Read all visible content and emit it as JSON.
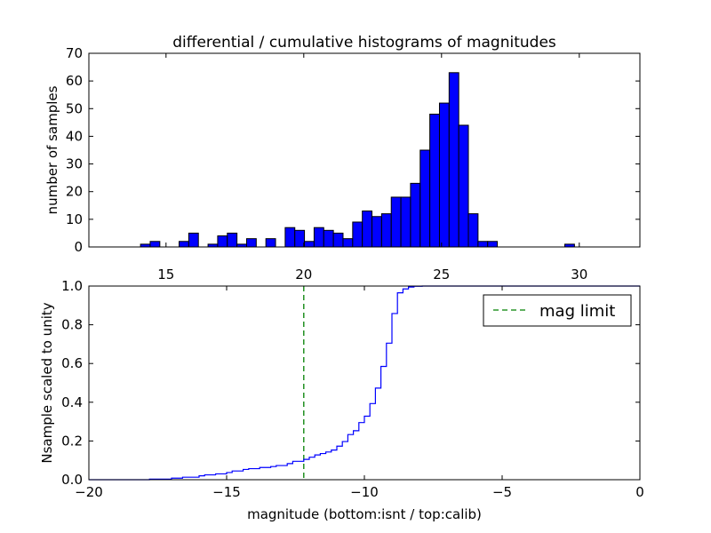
{
  "figure": {
    "title": "differential / cumulative histograms of magnitudes"
  },
  "chart_data": [
    {
      "type": "bar",
      "title": "differential / cumulative histograms of magnitudes",
      "xlabel": "",
      "ylabel": "number of samples",
      "xlim": [
        12.2,
        32.2
      ],
      "ylim": [
        0,
        70
      ],
      "x_ticks": [
        15,
        20,
        25,
        30
      ],
      "x_tick_labels": [
        "15",
        "20",
        "25",
        "30"
      ],
      "y_ticks": [
        0,
        10,
        20,
        30,
        40,
        50,
        60,
        70
      ],
      "y_tick_labels": [
        "0",
        "10",
        "20",
        "30",
        "40",
        "50",
        "60",
        "70"
      ],
      "bin_width": 0.35,
      "bars": [
        {
          "x": 14.25,
          "value": 1
        },
        {
          "x": 14.6,
          "value": 2
        },
        {
          "x": 15.65,
          "value": 2
        },
        {
          "x": 16.0,
          "value": 5
        },
        {
          "x": 16.7,
          "value": 1
        },
        {
          "x": 17.05,
          "value": 4
        },
        {
          "x": 17.4,
          "value": 5
        },
        {
          "x": 17.75,
          "value": 1
        },
        {
          "x": 18.1,
          "value": 3
        },
        {
          "x": 18.8,
          "value": 3
        },
        {
          "x": 19.5,
          "value": 7
        },
        {
          "x": 19.85,
          "value": 6
        },
        {
          "x": 20.2,
          "value": 2
        },
        {
          "x": 20.55,
          "value": 7
        },
        {
          "x": 20.9,
          "value": 6
        },
        {
          "x": 21.25,
          "value": 5
        },
        {
          "x": 21.6,
          "value": 3
        },
        {
          "x": 21.95,
          "value": 9
        },
        {
          "x": 22.3,
          "value": 13
        },
        {
          "x": 22.65,
          "value": 11
        },
        {
          "x": 23.0,
          "value": 12
        },
        {
          "x": 23.35,
          "value": 18
        },
        {
          "x": 23.7,
          "value": 18
        },
        {
          "x": 24.05,
          "value": 23
        },
        {
          "x": 24.4,
          "value": 35
        },
        {
          "x": 24.75,
          "value": 48
        },
        {
          "x": 25.1,
          "value": 52
        },
        {
          "x": 25.45,
          "value": 63
        },
        {
          "x": 25.8,
          "value": 44
        },
        {
          "x": 26.15,
          "value": 12
        },
        {
          "x": 26.5,
          "value": 2
        },
        {
          "x": 26.85,
          "value": 2
        },
        {
          "x": 29.65,
          "value": 1
        }
      ],
      "color": "#0000ff"
    },
    {
      "type": "line",
      "subtype": "step",
      "title": "",
      "xlabel": "magnitude (bottom:isnt / top:calib)",
      "ylabel": "Nsample scaled to unity",
      "xlim": [
        -20,
        0
      ],
      "ylim": [
        0,
        1
      ],
      "x_ticks": [
        -20,
        -15,
        -10,
        -5,
        0
      ],
      "x_tick_labels": [
        "−20",
        "−15",
        "−10",
        "−5",
        "0"
      ],
      "y_ticks": [
        0,
        0.2,
        0.4,
        0.6,
        0.8,
        1.0
      ],
      "y_tick_labels": [
        "0.0",
        "0.2",
        "0.4",
        "0.6",
        "0.8",
        "1.0"
      ],
      "series": [
        {
          "color": "#0000ff",
          "x": [
            -20,
            -17.8,
            -17.0,
            -16.6,
            -16.0,
            -15.8,
            -15.4,
            -15.0,
            -14.8,
            -14.4,
            -14.2,
            -13.8,
            -13.4,
            -13.2,
            -12.8,
            -12.6,
            -12.2,
            -12.0,
            -11.8,
            -11.6,
            -11.4,
            -11.2,
            -11.0,
            -10.8,
            -10.6,
            -10.4,
            -10.2,
            -10.0,
            -9.8,
            -9.6,
            -9.4,
            -9.2,
            -9.0,
            -8.8,
            -8.6,
            -8.4,
            -8.2,
            -7.9,
            -7.7,
            0
          ],
          "y": [
            0.0,
            0.003,
            0.008,
            0.013,
            0.02,
            0.025,
            0.03,
            0.037,
            0.045,
            0.053,
            0.057,
            0.063,
            0.068,
            0.073,
            0.083,
            0.095,
            0.105,
            0.116,
            0.128,
            0.135,
            0.143,
            0.153,
            0.173,
            0.197,
            0.233,
            0.253,
            0.295,
            0.328,
            0.393,
            0.473,
            0.585,
            0.705,
            0.858,
            0.965,
            0.985,
            0.995,
            0.999,
            1.0,
            1.0,
            1.0
          ]
        },
        {
          "name": "mag limit",
          "color": "#008000",
          "style": "dashed",
          "x_value": -12.2
        }
      ],
      "legend": {
        "placement": "top-right",
        "entries": [
          "mag limit"
        ]
      }
    }
  ]
}
